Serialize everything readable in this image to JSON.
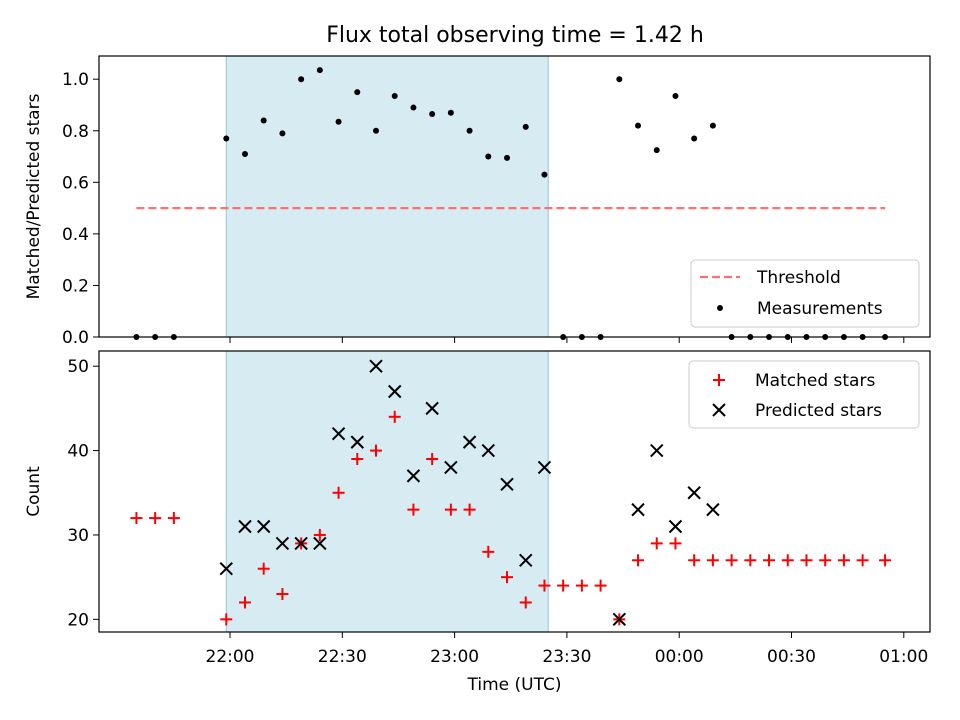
{
  "title": "Flux total observing time = 1.42 h",
  "chart_data": [
    {
      "type": "scatter",
      "ylabel": "Matched/Predicted stars",
      "xlim": [
        "21:25",
        "01:07"
      ],
      "ylim": [
        0,
        1.09
      ],
      "yticks": [
        0.0,
        0.2,
        0.4,
        0.6,
        0.8,
        1.0
      ],
      "ytick_labels": [
        "0.0",
        "0.2",
        "0.4",
        "0.6",
        "0.8",
        "1.0"
      ],
      "x_tick_marks": [
        "22:00",
        "22:30",
        "23:00",
        "23:30",
        "00:00",
        "00:30",
        "01:00"
      ],
      "shaded_span": [
        "21:59",
        "23:25"
      ],
      "threshold": {
        "name": "Threshold",
        "value": 0.5,
        "x_start": "21:35",
        "x_end": "00:55",
        "color": "#ff7070"
      },
      "measurements": {
        "name": "Measurements",
        "x": [
          "21:35",
          "21:40",
          "21:45",
          "21:59",
          "22:04",
          "22:09",
          "22:14",
          "22:19",
          "22:24",
          "22:29",
          "22:34",
          "22:39",
          "22:44",
          "22:49",
          "22:54",
          "22:59",
          "23:04",
          "23:09",
          "23:14",
          "23:19",
          "23:24",
          "23:29",
          "23:34",
          "23:39",
          "23:44",
          "23:49",
          "23:54",
          "23:59",
          "00:04",
          "00:09",
          "00:14",
          "00:19",
          "00:24",
          "00:29",
          "00:34",
          "00:39",
          "00:44",
          "00:49",
          "00:55"
        ],
        "y": [
          0,
          0,
          0,
          0.77,
          0.71,
          0.84,
          0.79,
          1.0,
          1.035,
          0.835,
          0.95,
          0.8,
          0.935,
          0.89,
          0.865,
          0.87,
          0.8,
          0.7,
          0.695,
          0.815,
          0.63,
          0,
          0,
          0,
          1.0,
          0.82,
          0.725,
          0.935,
          0.77,
          0.82,
          0,
          0,
          0,
          0,
          0,
          0,
          0,
          0,
          0
        ]
      },
      "legend": {
        "position": "lower right",
        "entries": [
          "Threshold",
          "Measurements"
        ]
      }
    },
    {
      "type": "scatter",
      "xlabel": "Time (UTC)",
      "ylabel": "Count",
      "xlim": [
        "21:25",
        "01:07"
      ],
      "ylim": [
        18.5,
        51.8
      ],
      "yticks": [
        20,
        30,
        40,
        50
      ],
      "ytick_labels": [
        "20",
        "30",
        "40",
        "50"
      ],
      "xticks": [
        "22:00",
        "22:30",
        "23:00",
        "23:30",
        "00:00",
        "00:30",
        "01:00"
      ],
      "shaded_span": [
        "21:59",
        "23:25"
      ],
      "series": [
        {
          "name": "Matched stars",
          "marker": "+",
          "color": "#ff0000",
          "x": [
            "21:35",
            "21:40",
            "21:45",
            "21:59",
            "22:04",
            "22:09",
            "22:14",
            "22:19",
            "22:24",
            "22:29",
            "22:34",
            "22:39",
            "22:44",
            "22:49",
            "22:54",
            "22:59",
            "23:04",
            "23:09",
            "23:14",
            "23:19",
            "23:24",
            "23:29",
            "23:34",
            "23:39",
            "23:44",
            "23:49",
            "23:54",
            "23:59",
            "00:04",
            "00:09",
            "00:14",
            "00:19",
            "00:24",
            "00:29",
            "00:34",
            "00:39",
            "00:44",
            "00:49",
            "00:55"
          ],
          "y": [
            32,
            32,
            32,
            20,
            22,
            26,
            23,
            29,
            30,
            35,
            39,
            40,
            44,
            33,
            39,
            33,
            33,
            28,
            25,
            22,
            24,
            24,
            24,
            24,
            20,
            27,
            29,
            29,
            27,
            27,
            27,
            27,
            27,
            27,
            27,
            27,
            27,
            27,
            27
          ]
        },
        {
          "name": "Predicted stars",
          "marker": "x",
          "color": "#000000",
          "x": [
            "21:59",
            "22:04",
            "22:09",
            "22:14",
            "22:19",
            "22:24",
            "22:29",
            "22:34",
            "22:39",
            "22:44",
            "22:49",
            "22:54",
            "22:59",
            "23:04",
            "23:09",
            "23:14",
            "23:19",
            "23:24",
            "23:44",
            "23:49",
            "23:54",
            "23:59",
            "00:04",
            "00:09"
          ],
          "y": [
            26,
            31,
            31,
            29,
            29,
            29,
            42,
            41,
            50,
            47,
            37,
            45,
            38,
            41,
            40,
            36,
            27,
            38,
            20,
            33,
            40,
            31,
            35,
            33
          ]
        }
      ],
      "legend": {
        "position": "upper right",
        "entries": [
          "Matched stars",
          "Predicted stars"
        ]
      }
    }
  ]
}
